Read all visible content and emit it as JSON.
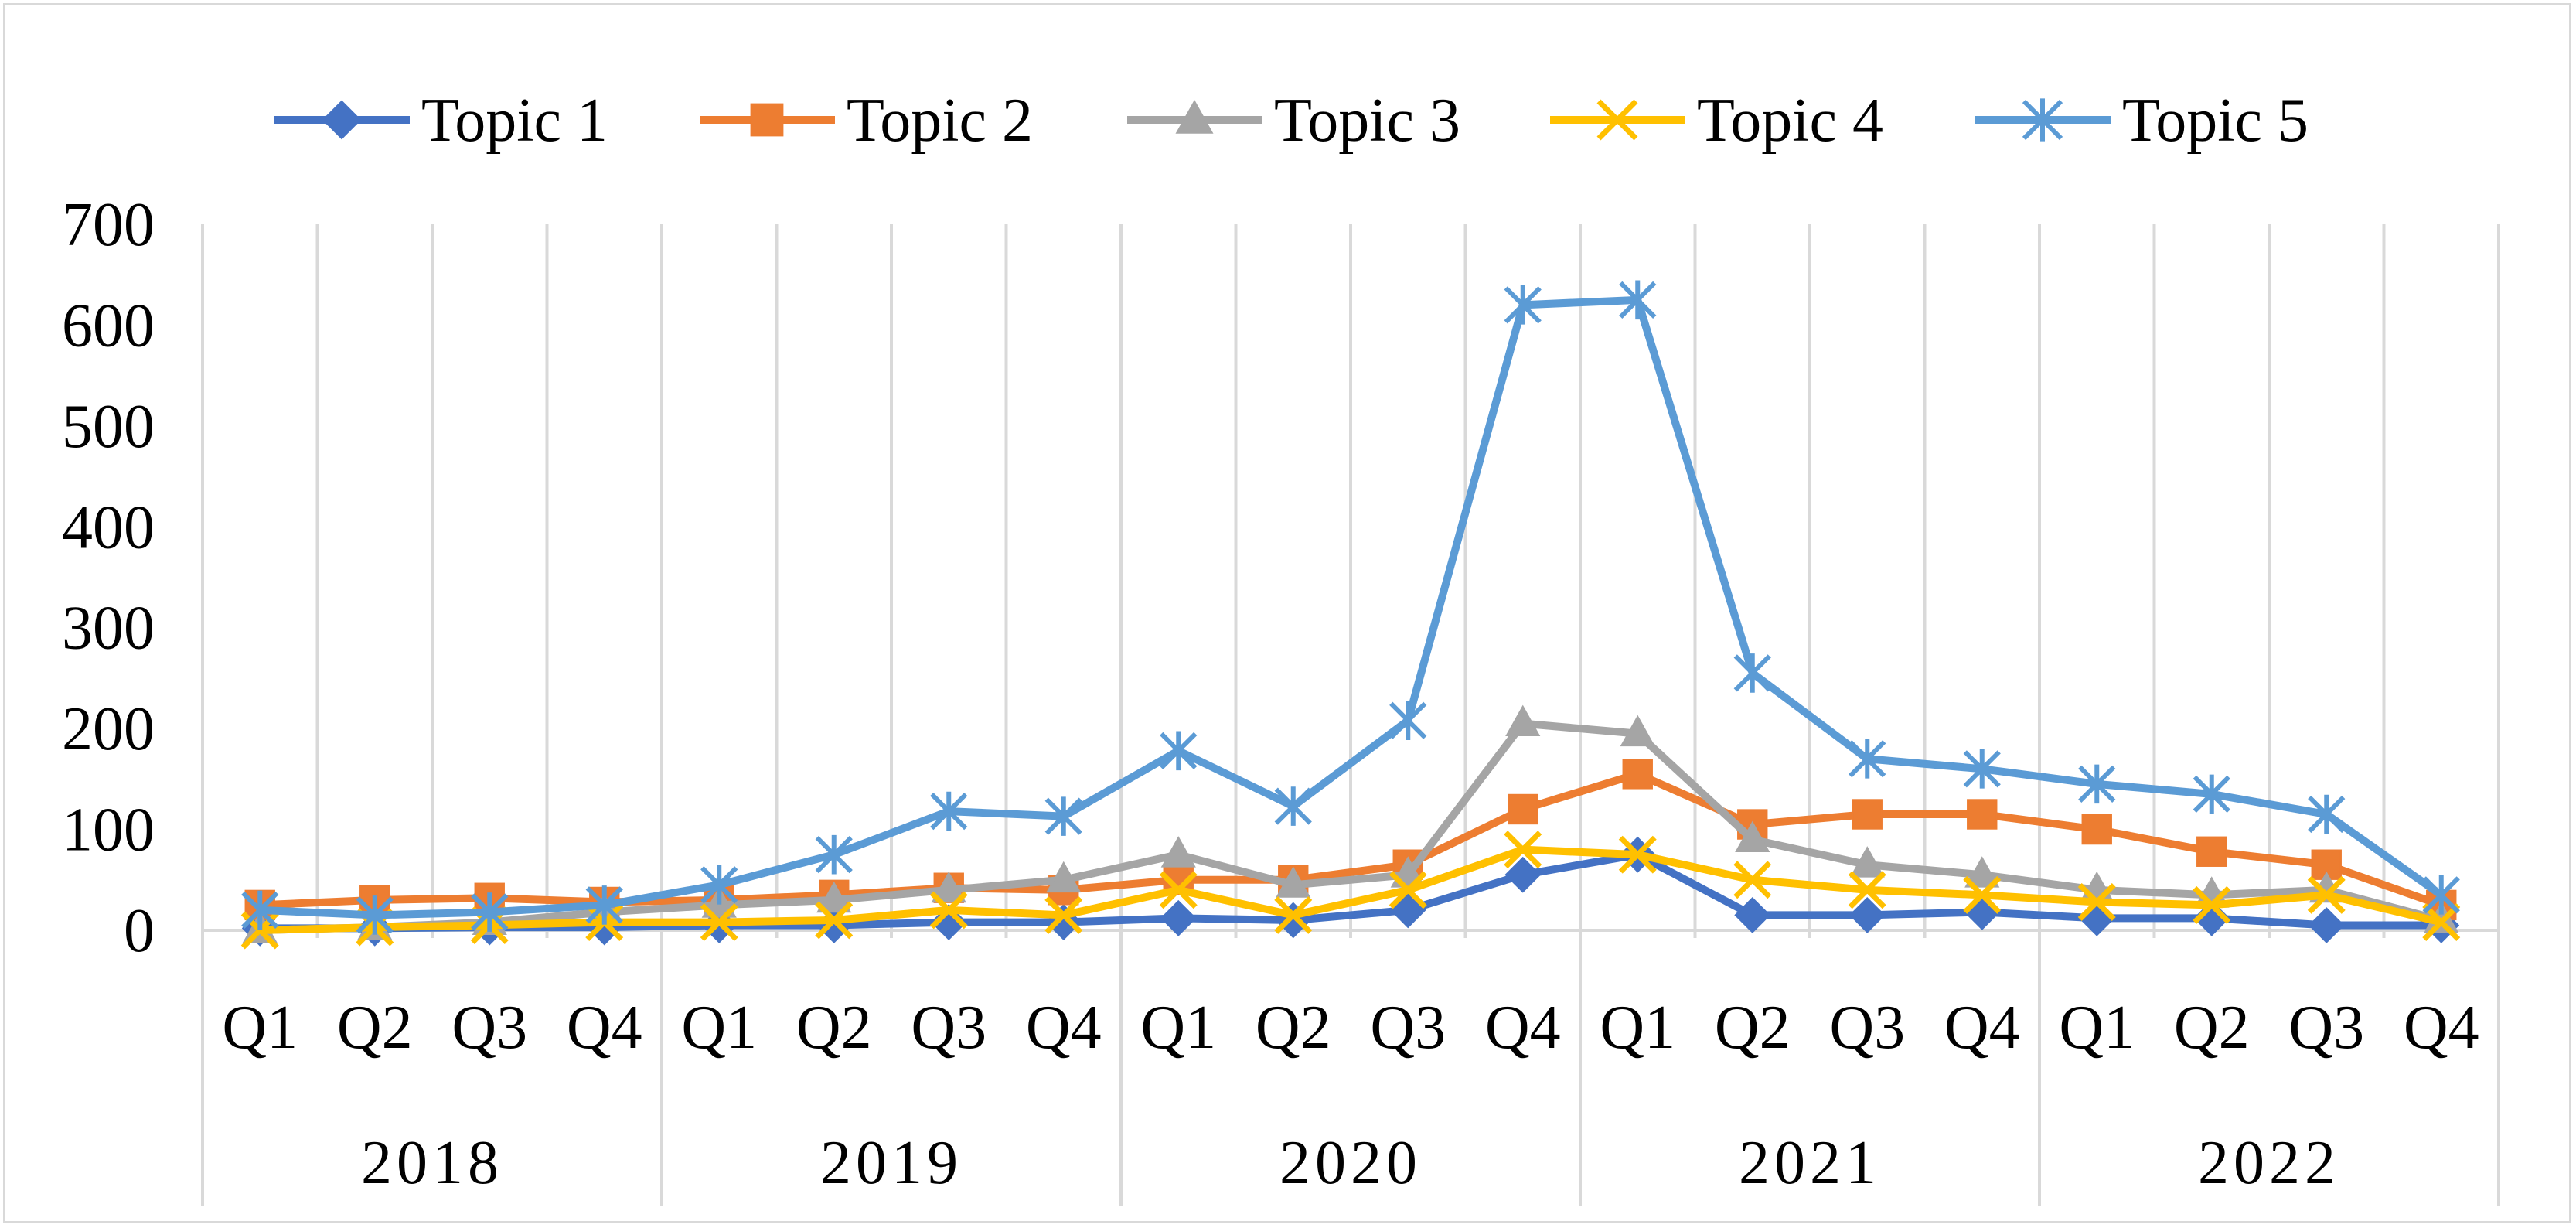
{
  "chart_data": {
    "type": "line",
    "title": "",
    "xlabel": "",
    "ylabel": "",
    "ylim": [
      0,
      700
    ],
    "yticks": [
      "0",
      "100",
      "200",
      "300",
      "400",
      "500",
      "600",
      "700"
    ],
    "grid": "vertical",
    "legend_position": "top",
    "categories": [
      "Q1",
      "Q2",
      "Q3",
      "Q4",
      "Q1",
      "Q2",
      "Q3",
      "Q4",
      "Q1",
      "Q2",
      "Q3",
      "Q4",
      "Q1",
      "Q2",
      "Q3",
      "Q4",
      "Q1",
      "Q2",
      "Q3",
      "Q4"
    ],
    "groups": [
      "2018",
      "2019",
      "2020",
      "2021",
      "2022"
    ],
    "series": [
      {
        "name": "Topic 1",
        "color": "#4472c4",
        "marker": "diamond",
        "values": [
          2,
          2,
          3,
          3,
          5,
          5,
          8,
          8,
          12,
          10,
          20,
          55,
          75,
          15,
          15,
          18,
          12,
          12,
          5,
          5
        ]
      },
      {
        "name": "Topic 2",
        "color": "#ed7d31",
        "marker": "square",
        "values": [
          25,
          30,
          32,
          28,
          30,
          35,
          42,
          40,
          50,
          50,
          65,
          120,
          155,
          105,
          115,
          115,
          100,
          78,
          65,
          25
        ]
      },
      {
        "name": "Topic 3",
        "color": "#a5a5a5",
        "marker": "triangle",
        "values": [
          0,
          3,
          8,
          18,
          25,
          30,
          40,
          50,
          75,
          45,
          55,
          205,
          195,
          90,
          65,
          55,
          40,
          35,
          40,
          10
        ]
      },
      {
        "name": "Topic 4",
        "color": "#ffc000",
        "marker": "x",
        "values": [
          0,
          3,
          5,
          8,
          8,
          10,
          20,
          15,
          40,
          15,
          40,
          80,
          75,
          50,
          40,
          35,
          28,
          25,
          35,
          8
        ]
      },
      {
        "name": "Topic 5",
        "color": "#5b9bd5",
        "marker": "star",
        "values": [
          20,
          15,
          18,
          25,
          45,
          75,
          118,
          113,
          178,
          123,
          208,
          620,
          625,
          255,
          170,
          160,
          145,
          135,
          115,
          35
        ]
      }
    ]
  }
}
